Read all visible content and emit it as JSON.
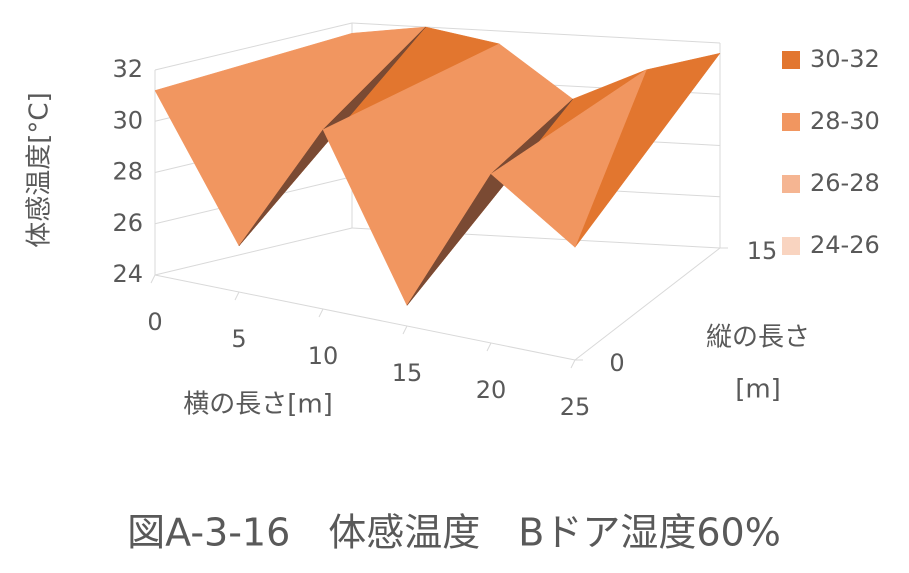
{
  "chart_data": {
    "type": "surface",
    "caption": "図A-3-16　体感温度　Bドア湿度60%",
    "z_axis_label": "体感温度[°C]",
    "x_axis_label": "横の長さ[m]",
    "depth_axis_label": [
      "縦の長さ",
      "[m]"
    ],
    "x": [
      0,
      5,
      10,
      15,
      20,
      25
    ],
    "depth": [
      0,
      15
    ],
    "rows": [
      [
        31.2,
        25.8,
        31.0,
        24.8,
        30.6,
        28.4
      ],
      [
        31.6,
        32,
        31.5,
        29.5,
        30.8,
        31.6
      ]
    ],
    "zlim": [
      24,
      32
    ],
    "zticks": [
      24,
      26,
      28,
      30,
      32
    ],
    "xlim": [
      0,
      25
    ],
    "xticks": [
      0,
      5,
      10,
      15,
      20,
      25
    ],
    "depthlim": [
      0,
      15
    ],
    "depthticks": [
      0,
      15
    ],
    "bands": [
      {
        "label": "30-32",
        "min": 30,
        "max": 32,
        "color": "#e2762f"
      },
      {
        "label": "28-30",
        "min": 28,
        "max": 30,
        "color": "#f19660"
      },
      {
        "label": "26-28",
        "min": 26,
        "max": 28,
        "color": "#f5b592"
      },
      {
        "label": "24-26",
        "min": 24,
        "max": 26,
        "color": "#f9d4c0"
      }
    ],
    "grid": true
  }
}
